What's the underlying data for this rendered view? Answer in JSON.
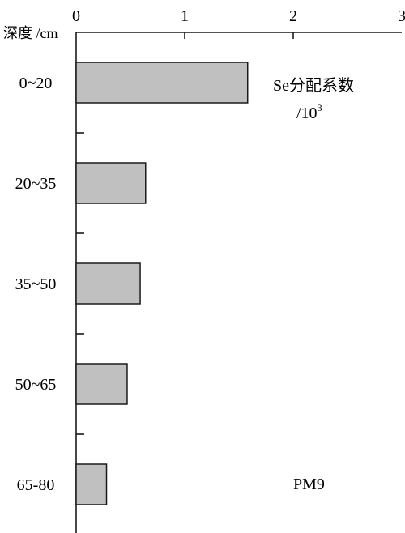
{
  "chart_data": {
    "type": "bar",
    "orientation": "horizontal",
    "x_axis_position": "top",
    "categories": [
      "0~20",
      "20~35",
      "35~50",
      "50~65",
      "65-80"
    ],
    "values": [
      1.58,
      0.64,
      0.59,
      0.47,
      0.28
    ],
    "x_ticks": [
      0,
      1,
      2,
      3
    ],
    "xlim": [
      0,
      3
    ],
    "ylabel": "深度 /cm",
    "annotation_title": "Se分配系数",
    "annotation_unit_prefix": "/10",
    "annotation_unit_exp": "3",
    "site_label": "PM9",
    "colors": {
      "bar_fill": "#c0c0c0",
      "bar_stroke": "#1a1a1a"
    },
    "grid": false,
    "legend": "none"
  }
}
